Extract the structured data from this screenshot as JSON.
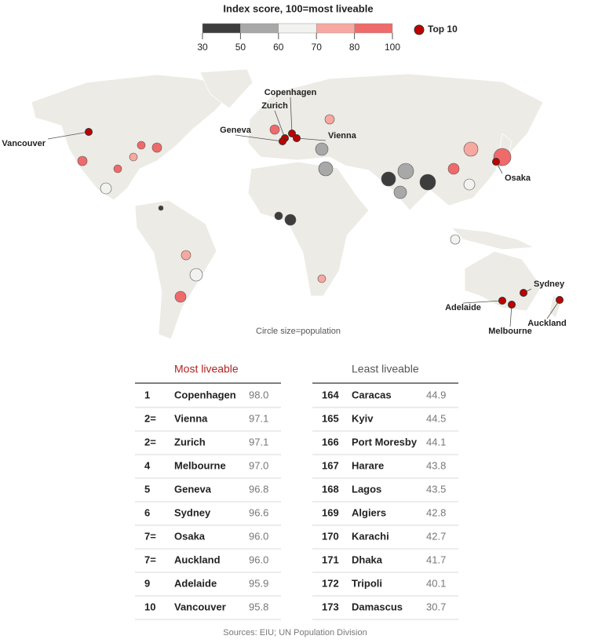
{
  "legend": {
    "title": "Index score, 100=most liveable",
    "ticks": [
      30,
      50,
      60,
      70,
      80,
      100
    ],
    "colors": [
      "#3d3d3d",
      "#a8a8a8",
      "#f2f2f0",
      "#f7a8a0",
      "#ef6a6a"
    ],
    "top10": "Top 10",
    "top10_color": "#c00000"
  },
  "map": {
    "labels": [
      "Vancouver",
      "Copenhagen",
      "Zurich",
      "Geneva",
      "Vienna",
      "Osaka",
      "Sydney",
      "Adelaide",
      "Melbourne",
      "Auckland"
    ],
    "note": "Circle size=population"
  },
  "tables": {
    "most": {
      "title": "Most liveable",
      "rows": [
        [
          "1",
          "Copenhagen",
          "98.0"
        ],
        [
          "2=",
          "Vienna",
          "97.1"
        ],
        [
          "2=",
          "Zurich",
          "97.1"
        ],
        [
          "4",
          "Melbourne",
          "97.0"
        ],
        [
          "5",
          "Geneva",
          "96.8"
        ],
        [
          "6",
          "Sydney",
          "96.6"
        ],
        [
          "7=",
          "Osaka",
          "96.0"
        ],
        [
          "7=",
          "Auckland",
          "96.0"
        ],
        [
          "9",
          "Adelaide",
          "95.9"
        ],
        [
          "10",
          "Vancouver",
          "95.8"
        ]
      ]
    },
    "least": {
      "title": "Least liveable",
      "rows": [
        [
          "164",
          "Caracas",
          "44.9"
        ],
        [
          "165",
          "Kyiv",
          "44.5"
        ],
        [
          "166",
          "Port Moresby",
          "44.1"
        ],
        [
          "167",
          "Harare",
          "43.8"
        ],
        [
          "168",
          "Lagos",
          "43.5"
        ],
        [
          "169",
          "Algiers",
          "42.8"
        ],
        [
          "170",
          "Karachi",
          "42.7"
        ],
        [
          "171",
          "Dhaka",
          "41.7"
        ],
        [
          "172",
          "Tripoli",
          "40.1"
        ],
        [
          "173",
          "Damascus",
          "30.7"
        ]
      ]
    }
  },
  "source": "Sources: EIU; UN Population Division"
}
